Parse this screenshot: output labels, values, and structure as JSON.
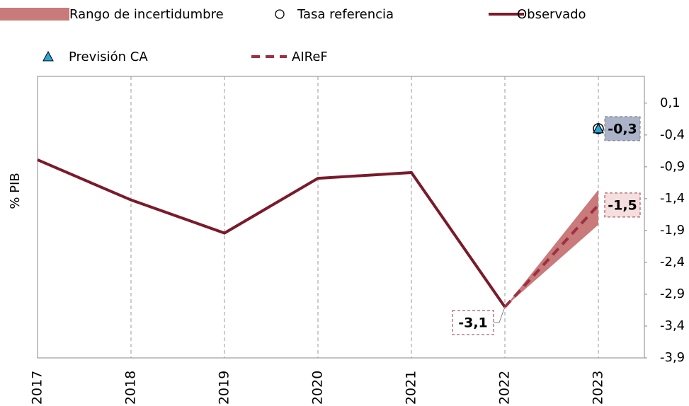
{
  "chart_data": {
    "type": "line",
    "y_label": "% PIB",
    "categories": [
      "2017",
      "2018",
      "2019",
      "2020",
      "2021",
      "2022",
      "2023"
    ],
    "ylim": [
      -3.9,
      0.52
    ],
    "yticks": [
      {
        "value": 0.1,
        "label": "0,1"
      },
      {
        "value": -0.4,
        "label": "-0,4"
      },
      {
        "value": -0.9,
        "label": "-0,9"
      },
      {
        "value": -1.4,
        "label": "-1,4"
      },
      {
        "value": -1.9,
        "label": "-1,9"
      },
      {
        "value": -2.4,
        "label": "-2,4"
      },
      {
        "value": -2.9,
        "label": "-2,9"
      },
      {
        "value": -3.4,
        "label": "-3,4"
      },
      {
        "value": -3.9,
        "label": "-3,9"
      }
    ],
    "grid": true,
    "series": [
      {
        "name": "Rango de incertidumbre",
        "type": "area",
        "color": "#c97a7b",
        "lower": [
          null,
          null,
          null,
          null,
          null,
          -3.1,
          -1.81
        ],
        "upper": [
          null,
          null,
          null,
          null,
          null,
          -3.1,
          -1.26
        ]
      },
      {
        "name": "Tasa referencia",
        "type": "scatter",
        "marker": "circle",
        "color": "#ffffff",
        "values": [
          null,
          null,
          null,
          null,
          null,
          null,
          -0.3
        ]
      },
      {
        "name": "Observado",
        "type": "line",
        "color": "#7a1a2c",
        "values": [
          -0.79,
          -1.42,
          -1.94,
          -1.08,
          -0.99,
          -3.1,
          null
        ],
        "value_labels": [
          null,
          null,
          null,
          null,
          null,
          "-3,1",
          null
        ]
      },
      {
        "name": "Previsión CA",
        "type": "scatter",
        "marker": "triangle",
        "color": "#2aa5d8",
        "values": [
          null,
          null,
          null,
          null,
          null,
          null,
          -0.3
        ],
        "value_labels": [
          null,
          null,
          null,
          null,
          null,
          null,
          "-0,3"
        ]
      },
      {
        "name": "AIReF",
        "type": "line",
        "dash": true,
        "color": "#9c3142",
        "values": [
          null,
          null,
          null,
          null,
          null,
          -3.1,
          -1.5
        ],
        "value_labels": [
          null,
          null,
          null,
          null,
          null,
          null,
          "-1,5"
        ]
      }
    ]
  }
}
